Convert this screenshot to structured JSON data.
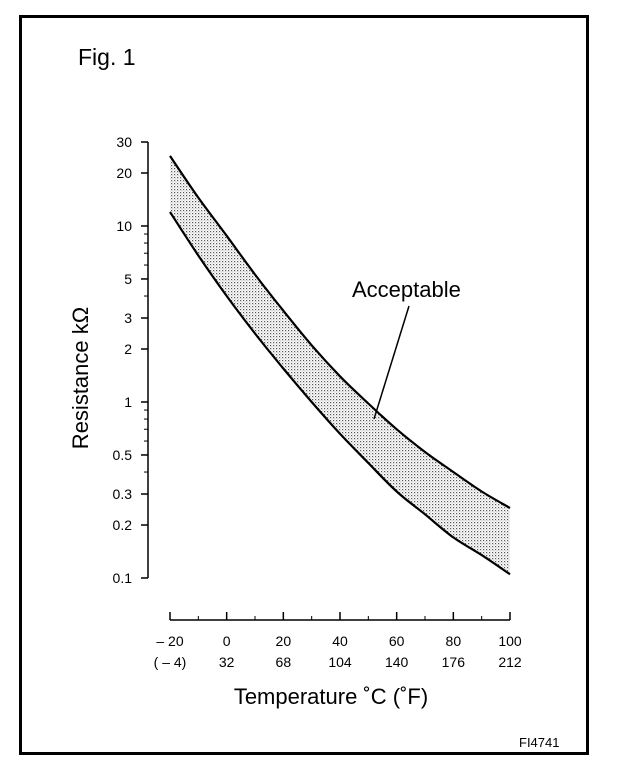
{
  "figure": {
    "title": "Fig. 1",
    "code": "FI4741"
  },
  "chart_data": {
    "type": "area",
    "title": "Fig. 1",
    "xlabel": "Temperature ˚C (˚F)",
    "ylabel": "Resistance kΩ",
    "y_scale": "log",
    "ylim": [
      0.1,
      30
    ],
    "xlim": [
      -20,
      100
    ],
    "y_ticks": [
      0.1,
      0.2,
      0.3,
      0.5,
      1,
      2,
      3,
      5,
      10,
      20,
      30
    ],
    "y_tick_labels": [
      "0.1",
      "0.2",
      "0.3",
      "0.5",
      "1",
      "2",
      "3",
      "5",
      "10",
      "20",
      "30"
    ],
    "y_minor_ticks": [
      0.4,
      0.6,
      0.7,
      0.8,
      0.9,
      4,
      6,
      7,
      8,
      9
    ],
    "x_ticks": [
      -20,
      0,
      20,
      40,
      60,
      80,
      100
    ],
    "x_tick_labels": [
      "– 20",
      "0",
      "20",
      "40",
      "60",
      "80",
      "100"
    ],
    "x_tick_labels_f": [
      "( – 4)",
      "32",
      "68",
      "104",
      "140",
      "176",
      "212"
    ],
    "x_minor_ticks": [
      -10,
      10,
      30,
      50,
      70,
      90
    ],
    "grid": false,
    "legend": null,
    "annotation": {
      "text": "Acceptable",
      "points_to": {
        "x": 52,
        "y": 0.8
      }
    },
    "series": [
      {
        "role": "upper bound",
        "x": [
          -20,
          -10,
          0,
          10,
          20,
          30,
          40,
          50,
          60,
          70,
          80,
          90,
          100
        ],
        "y": [
          25,
          14.5,
          8.8,
          5.3,
          3.3,
          2.1,
          1.4,
          0.98,
          0.7,
          0.52,
          0.4,
          0.31,
          0.25
        ]
      },
      {
        "role": "lower bound",
        "x": [
          -20,
          -10,
          0,
          10,
          20,
          30,
          40,
          50,
          60,
          70,
          80,
          90,
          100
        ],
        "y": [
          12,
          6.8,
          4.0,
          2.45,
          1.55,
          1.0,
          0.66,
          0.45,
          0.31,
          0.23,
          0.17,
          0.135,
          0.105
        ]
      }
    ]
  }
}
